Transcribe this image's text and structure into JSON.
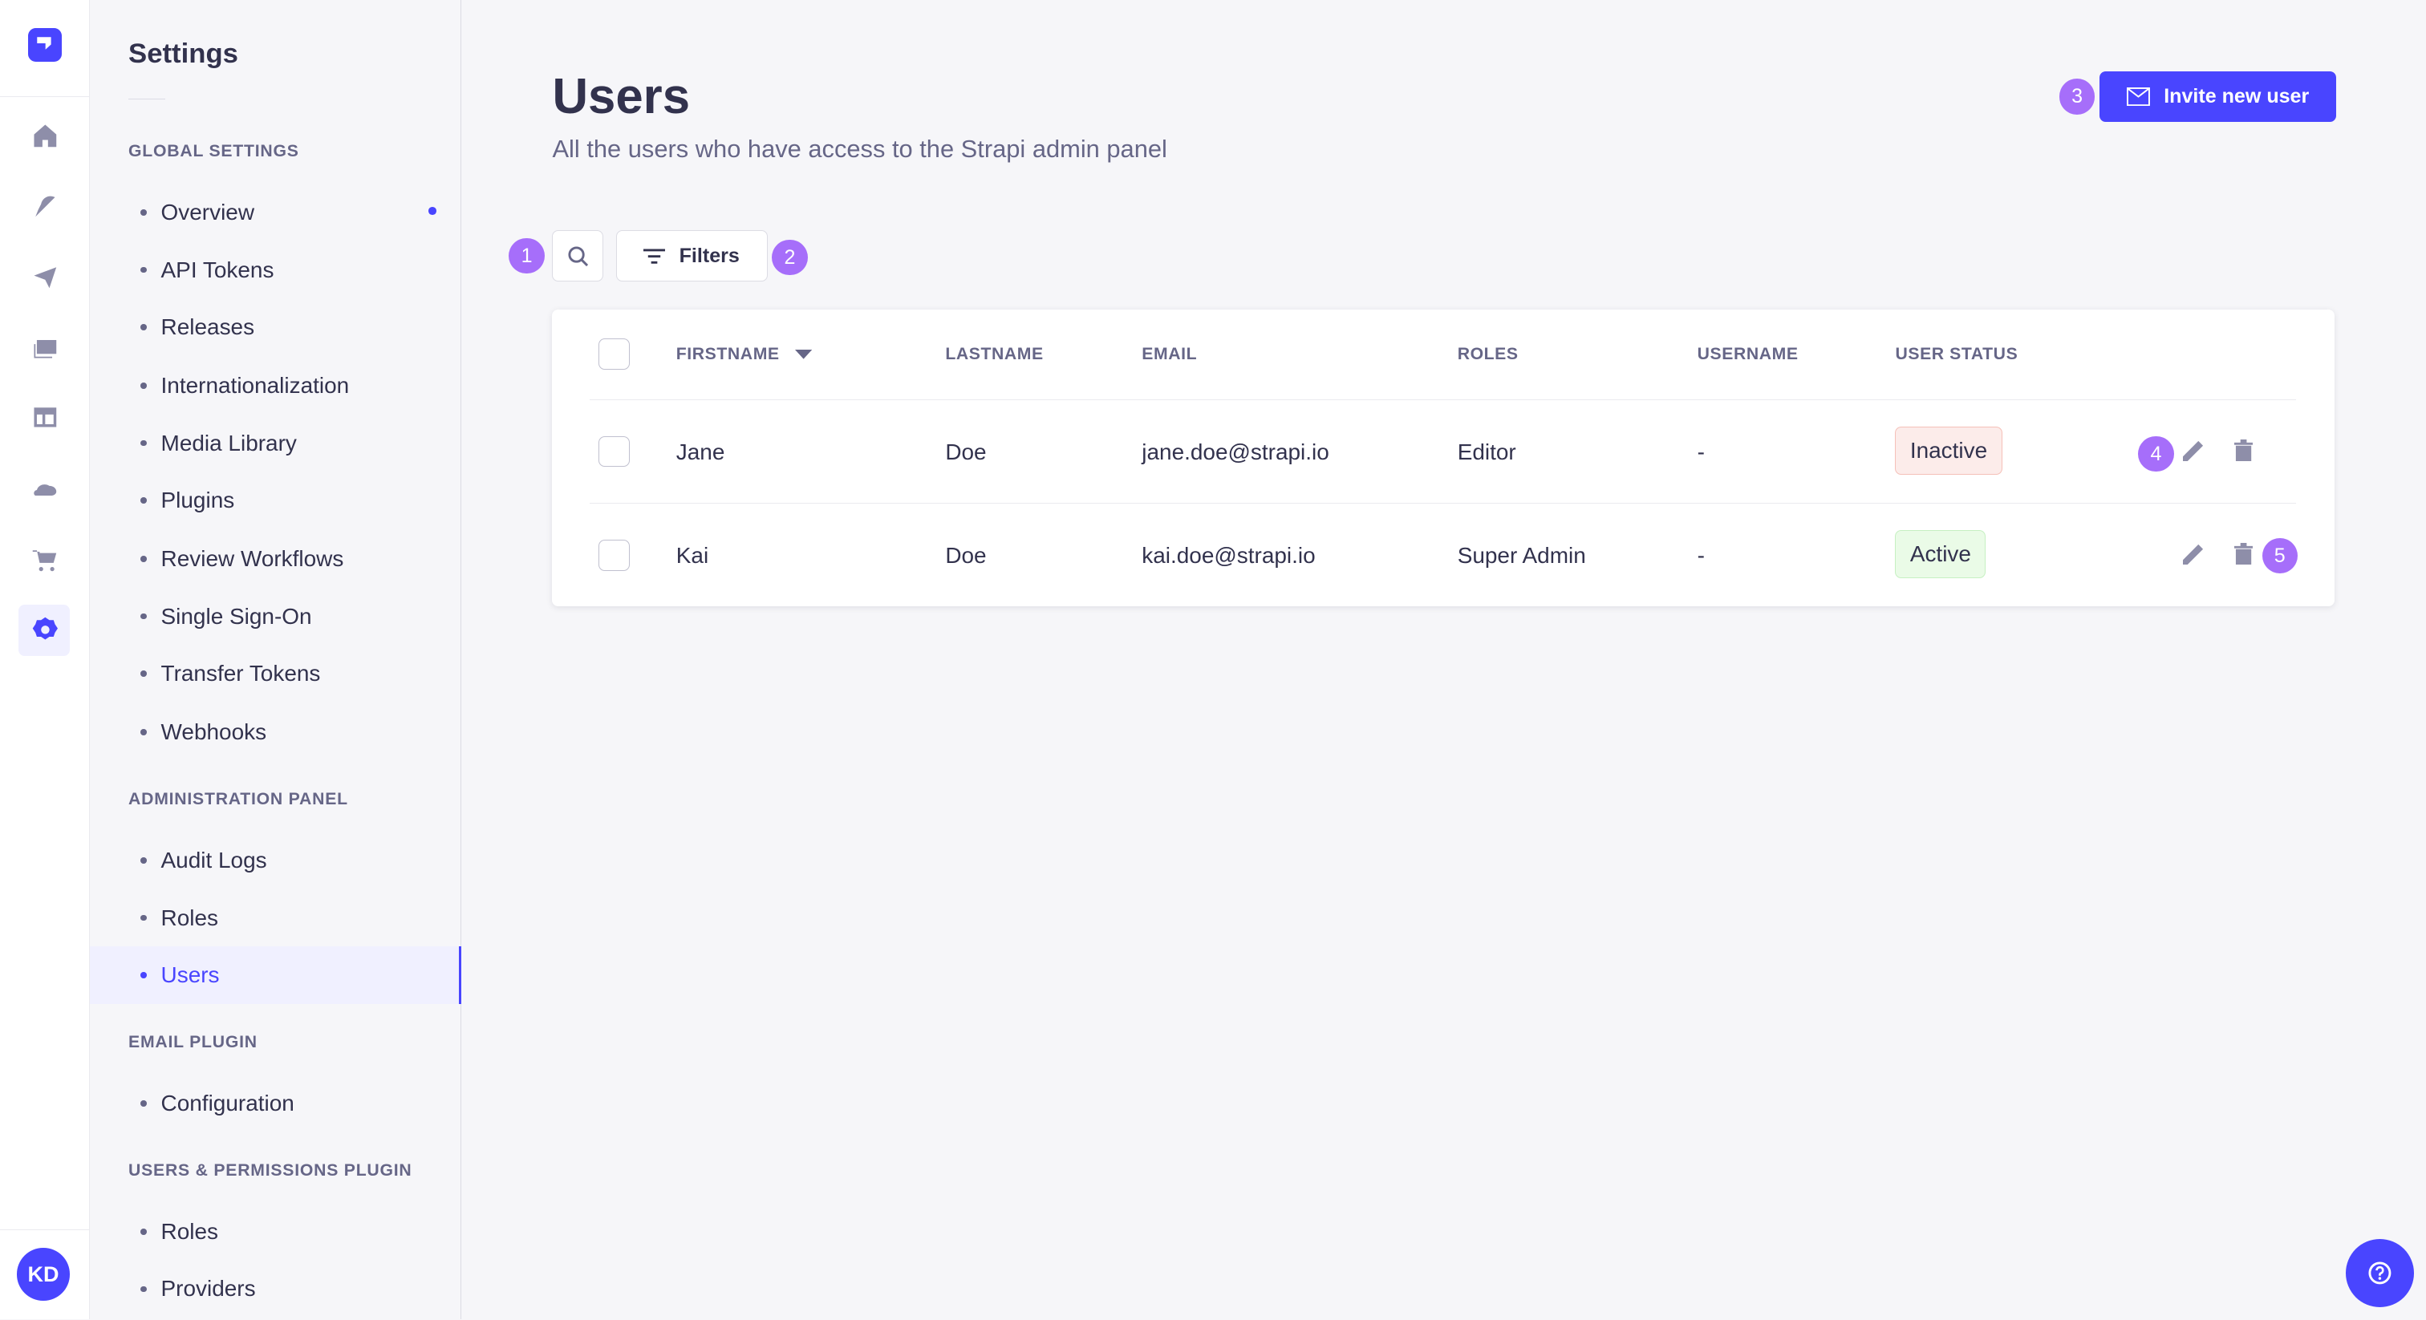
{
  "nav": {
    "icons": [
      "strapi-logo",
      "home-icon",
      "content-manager-icon",
      "deploy-icon",
      "media-library-icon",
      "content-type-builder-icon",
      "cloud-icon",
      "marketplace-icon",
      "settings-icon"
    ],
    "avatar": "KD"
  },
  "settings": {
    "title": "Settings",
    "sections": [
      {
        "label": "GLOBAL SETTINGS",
        "items": [
          "Overview",
          "API Tokens",
          "Releases",
          "Internationalization",
          "Media Library",
          "Plugins",
          "Review Workflows",
          "Single Sign-On",
          "Transfer Tokens",
          "Webhooks"
        ]
      },
      {
        "label": "ADMINISTRATION PANEL",
        "items": [
          "Audit Logs",
          "Roles",
          "Users"
        ]
      },
      {
        "label": "EMAIL PLUGIN",
        "items": [
          "Configuration"
        ]
      },
      {
        "label": "USERS & PERMISSIONS PLUGIN",
        "items": [
          "Roles",
          "Providers"
        ]
      }
    ],
    "active": "Users"
  },
  "page": {
    "title": "Users",
    "subtitle": "All the users who have access to the Strapi admin panel",
    "invite_label": "Invite new user",
    "filters_label": "Filters"
  },
  "badges": [
    "1",
    "2",
    "3",
    "4",
    "5"
  ],
  "table": {
    "headers": [
      "FIRSTNAME",
      "LASTNAME",
      "EMAIL",
      "ROLES",
      "USERNAME",
      "USER STATUS"
    ],
    "rows": [
      {
        "firstname": "Jane",
        "lastname": "Doe",
        "email": "jane.doe@strapi.io",
        "roles": "Editor",
        "username": "-",
        "status": "Inactive"
      },
      {
        "firstname": "Kai",
        "lastname": "Doe",
        "email": "kai.doe@strapi.io",
        "roles": "Super Admin",
        "username": "-",
        "status": "Active"
      }
    ]
  },
  "colors": {
    "primary": "#4945ff",
    "badge": "#a66efa",
    "inactive_border": "#f5c0b8",
    "active_border": "#c6f0c2"
  }
}
